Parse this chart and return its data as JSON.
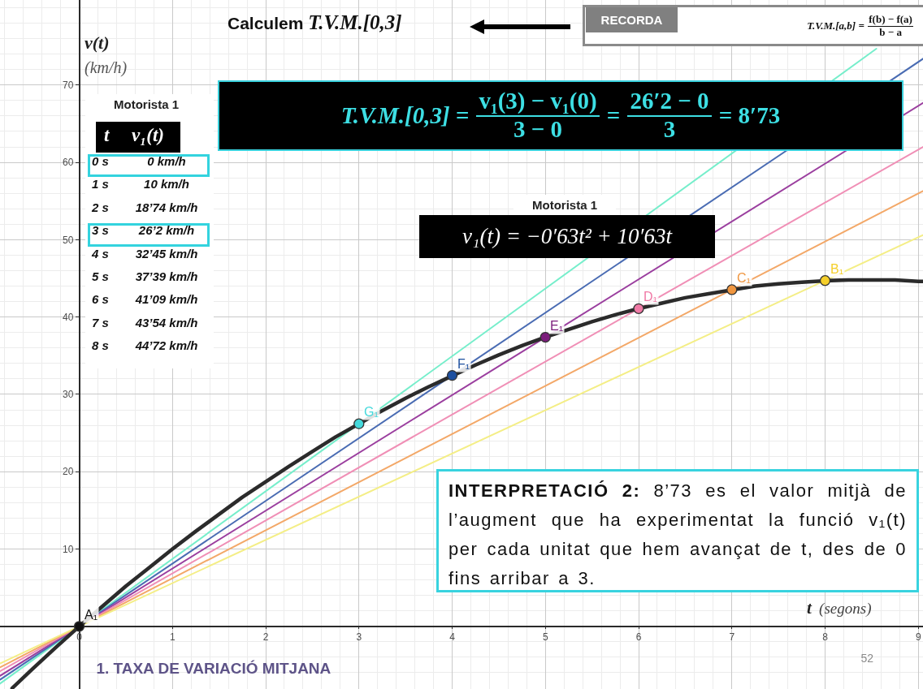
{
  "chart_data": {
    "type": "line",
    "title": "Calculem T.V.M.[0,3]",
    "xlabel": "t (segons)",
    "ylabel": "v(t) (km/h)",
    "xlim": [
      -0.85,
      9.05
    ],
    "ylim": [
      -8.1,
      81
    ],
    "xticks": [
      0,
      1,
      2,
      3,
      4,
      5,
      6,
      7,
      8,
      9
    ],
    "yticks": [
      10,
      20,
      30,
      40,
      50,
      60,
      70
    ],
    "grid": true,
    "series": [
      {
        "color": "#76eecb",
        "x": [
          -0.85,
          0,
          3,
          8.55
        ],
        "values": [
          -7.4,
          0,
          26.2,
          74.7
        ]
      },
      {
        "color": "#4a6cb3",
        "x": [
          -0.85,
          0,
          4,
          9.05
        ],
        "values": [
          -6.9,
          0,
          32.45,
          73.4
        ]
      },
      {
        "color": "#9b3f9f",
        "x": [
          -0.85,
          0,
          5,
          9.05
        ],
        "values": [
          -6.4,
          0,
          37.39,
          67.7
        ]
      },
      {
        "color": "#f08fb6",
        "x": [
          -0.85,
          0,
          6,
          9.05
        ],
        "values": [
          -5.8,
          0,
          41.09,
          62.0
        ]
      },
      {
        "color": "#f3a868",
        "x": [
          -0.85,
          0,
          7,
          9.05
        ],
        "values": [
          -5.3,
          0,
          43.54,
          56.3
        ]
      },
      {
        "color": "#f4ee86",
        "x": [
          -0.85,
          0,
          8,
          9.05
        ],
        "values": [
          -4.8,
          0,
          44.72,
          50.6
        ]
      },
      {
        "color": "#2b2b2b",
        "x": [
          -0.72,
          -0.5,
          -0.25,
          0,
          0.25,
          0.5,
          0.75,
          1,
          1.25,
          1.5,
          1.75,
          2,
          2.25,
          2.5,
          2.75,
          3,
          3.25,
          3.5,
          3.75,
          4,
          4.25,
          4.5,
          4.75,
          5,
          5.25,
          5.5,
          5.75,
          6,
          6.25,
          6.5,
          6.75,
          7,
          7.25,
          7.5,
          7.75,
          8,
          8.25,
          8.5,
          8.75,
          9,
          9.05
        ],
        "values": [
          -8.0,
          -5.5,
          -2.7,
          0,
          2.6,
          5.2,
          7.6,
          10,
          12.3,
          14.5,
          16.7,
          18.7,
          20.7,
          22.6,
          24.5,
          26.2,
          27.9,
          29.5,
          31.0,
          32.4,
          33.8,
          35.1,
          36.3,
          37.4,
          38.4,
          39.4,
          40.3,
          41.1,
          41.8,
          42.5,
          43.0,
          43.5,
          44.0,
          44.3,
          44.5,
          44.7,
          44.8,
          44.8,
          44.8,
          44.6,
          44.6
        ]
      },
      {
        "type": "scatter",
        "marker": "circle",
        "x": [
          0,
          3,
          4,
          5,
          6,
          7,
          8
        ],
        "values": [
          0,
          26.2,
          32.45,
          37.39,
          41.09,
          43.54,
          44.72
        ],
        "colors": [
          "#111111",
          "#45d9dc",
          "#1d4f9f",
          "#7b1c7b",
          "#f07aa6",
          "#f0963f",
          "#f5cf2a"
        ]
      }
    ],
    "annotations": [
      "T.V.M.[0,3] =",
      "v₁(3) − v₁(0)",
      "3 − 0",
      "=",
      "26′2 − 0",
      "3",
      "= 8′73",
      "RECORDA",
      "T.V.M.[a,b] =",
      "f(b) − f(a)",
      "b − a",
      "Motorista 1",
      "v₁(t) = −0′63t² + 10′63t",
      "INTERPRETACIÓ 2: 8’73 es el valor mitjà de l’augment que ha experimentat la funció v₁(t) per cada unitat que hem avançat de t, des de 0 fins arribar a 3.",
      "1. TAXA DE VARIACIÓ MITJANA",
      "52",
      "Motorista 1",
      "t",
      "v₁(t)",
      "0 s",
      "0 km/h",
      "1 s",
      "10 km/h",
      "2 s",
      "18’74 km/h",
      "3 s",
      "26’2 km/h",
      "4 s",
      "32’45 km/h",
      "5 s",
      "37’39 km/h",
      "6 s",
      "41’09 km/h",
      "7 s",
      "43’54 km/h",
      "8 s",
      "44’72 km/h",
      {
        "text": "A₁",
        "x": 0,
        "y": 0
      },
      {
        "text": "G₁",
        "x": 3,
        "y": 26.2
      },
      {
        "text": "F₁",
        "x": 4,
        "y": 32.45
      },
      {
        "text": "E₁",
        "x": 5,
        "y": 37.39
      },
      {
        "text": "D₁",
        "x": 6,
        "y": 41.09
      },
      {
        "text": "C₁",
        "x": 7,
        "y": 43.54
      },
      {
        "text": "B₁",
        "x": 8,
        "y": 44.72
      }
    ]
  }
}
